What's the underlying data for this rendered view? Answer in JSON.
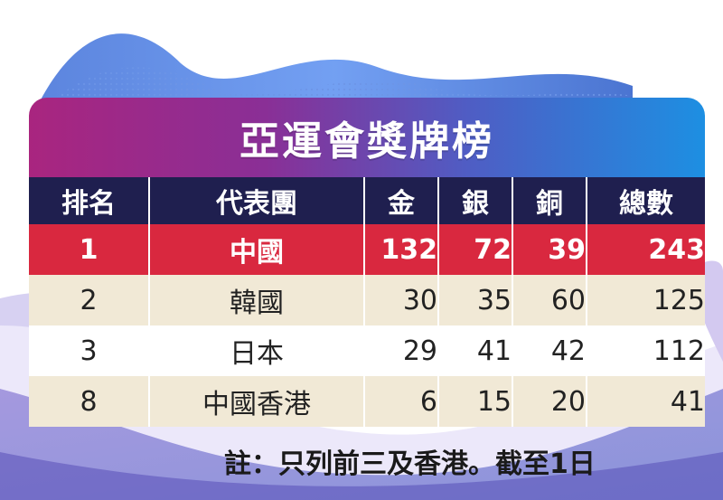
{
  "title": "亞運會獎牌榜",
  "headers": {
    "rank": "排名",
    "team": "代表團",
    "gold": "金",
    "silver": "銀",
    "bronze": "銅",
    "total": "總數"
  },
  "rows": [
    {
      "rank": "1",
      "team": "中國",
      "gold": "132",
      "silver": "72",
      "bronze": "39",
      "total": "243"
    },
    {
      "rank": "2",
      "team": "韓國",
      "gold": "30",
      "silver": "35",
      "bronze": "60",
      "total": "125"
    },
    {
      "rank": "3",
      "team": "日本",
      "gold": "29",
      "silver": "41",
      "bronze": "42",
      "total": "112"
    },
    {
      "rank": "8",
      "team": "中國香港",
      "gold": "6",
      "silver": "15",
      "bronze": "20",
      "total": "41"
    }
  ],
  "note": "註：只列前三及香港。截至1日",
  "colors": {
    "header_bg": "#1f1f4f",
    "highlight_row": "#d9283f",
    "cream_row": "#f1e9d6",
    "banner_start": "#a9257f",
    "banner_end": "#1d8fe2"
  }
}
